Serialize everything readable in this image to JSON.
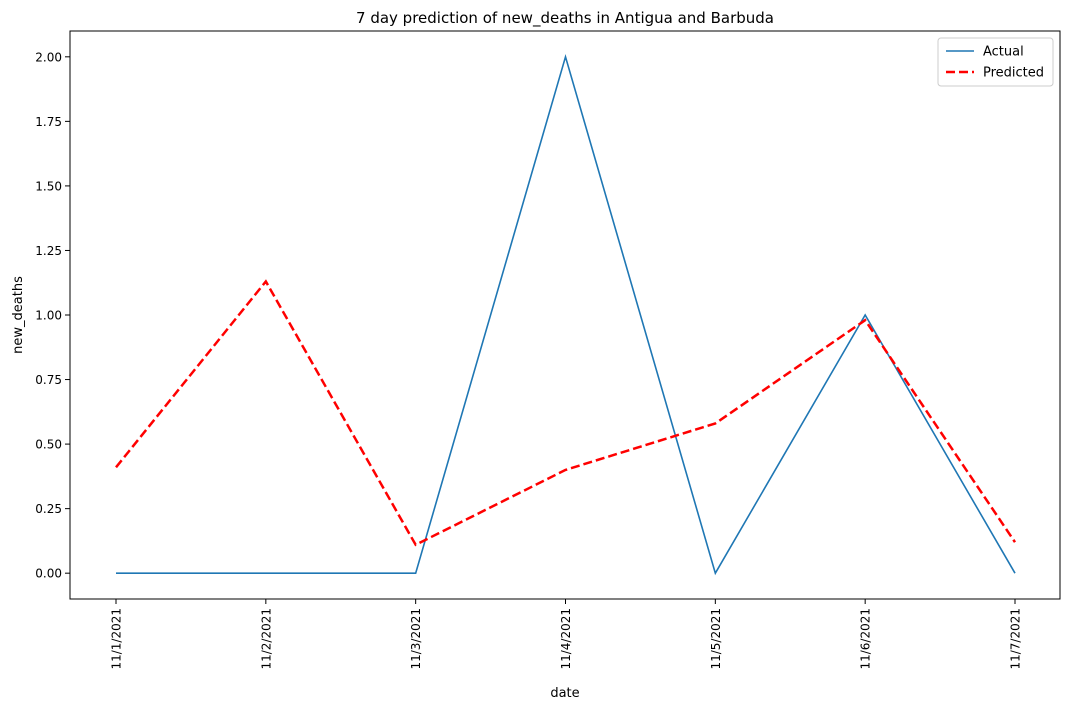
{
  "chart_data": {
    "type": "line",
    "title": "7 day prediction of new_deaths in Antigua and Barbuda",
    "xlabel": "date",
    "ylabel": "new_deaths",
    "categories": [
      "11/1/2021",
      "11/2/2021",
      "11/3/2021",
      "11/4/2021",
      "11/5/2021",
      "11/6/2021",
      "11/7/2021"
    ],
    "yticks": [
      "0.00",
      "0.25",
      "0.50",
      "0.75",
      "1.00",
      "1.25",
      "1.50",
      "1.75",
      "2.00"
    ],
    "ylim": [
      -0.1,
      2.1
    ],
    "grid": false,
    "legend_position": "top-right",
    "series": [
      {
        "name": "Actual",
        "values": [
          0,
          0,
          0,
          2,
          0,
          1,
          0
        ],
        "color": "#1f77b4",
        "style": "solid"
      },
      {
        "name": "Predicted",
        "values": [
          0.41,
          1.13,
          0.11,
          0.4,
          0.58,
          0.98,
          0.12
        ],
        "color": "#ff0000",
        "style": "dashed"
      }
    ]
  }
}
